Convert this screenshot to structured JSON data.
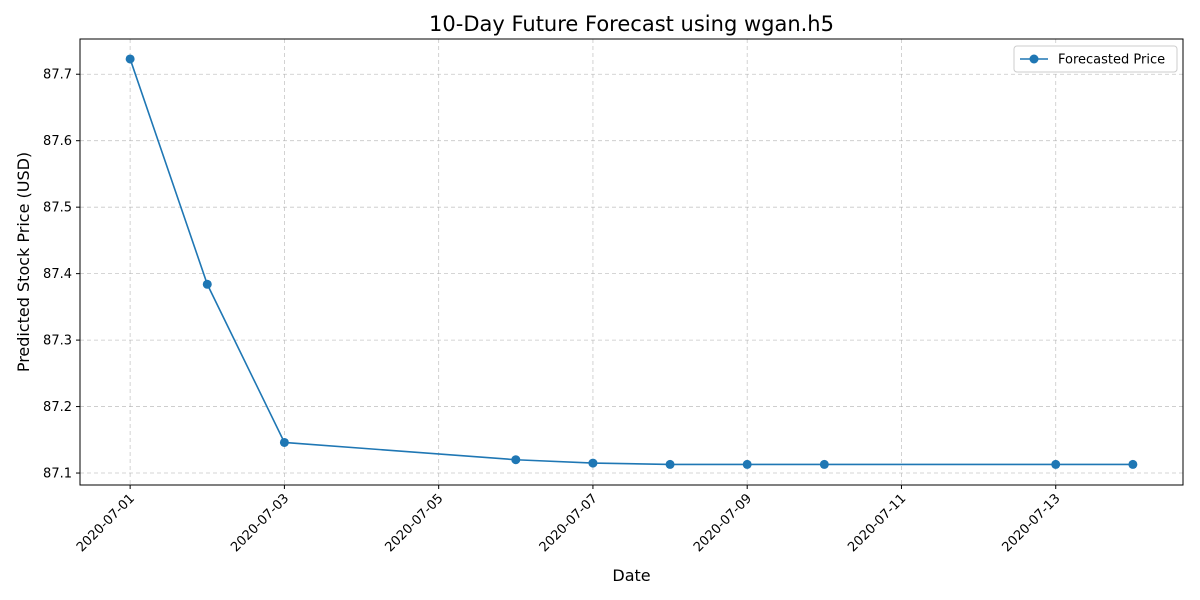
{
  "chart_data": {
    "type": "line",
    "title": "10-Day Future Forecast using wgan.h5",
    "xlabel": "Date",
    "ylabel": "Predicted Stock Price (USD)",
    "x": [
      "2020-07-01",
      "2020-07-02",
      "2020-07-03",
      "2020-07-06",
      "2020-07-07",
      "2020-07-08",
      "2020-07-09",
      "2020-07-10",
      "2020-07-13",
      "2020-07-14"
    ],
    "series": [
      {
        "name": "Forecasted Price",
        "color": "#1f77b4",
        "marker": "circle",
        "values": [
          87.723,
          87.384,
          87.146,
          87.12,
          87.115,
          87.113,
          87.113,
          87.113,
          87.113,
          87.113
        ]
      }
    ],
    "xticks": [
      "2020-07-01",
      "2020-07-03",
      "2020-07-05",
      "2020-07-07",
      "2020-07-09",
      "2020-07-11",
      "2020-07-13"
    ],
    "yticks": [
      87.1,
      87.2,
      87.3,
      87.4,
      87.5,
      87.6,
      87.7
    ],
    "ytick_labels": [
      "87.1",
      "87.2",
      "87.3",
      "87.4",
      "87.5",
      "87.6",
      "87.7"
    ],
    "xlim": [
      "2020-06-30T08:24",
      "2020-07-14T15:36"
    ],
    "ylim": [
      87.082,
      87.753
    ],
    "grid": true,
    "legend": "top-right"
  }
}
